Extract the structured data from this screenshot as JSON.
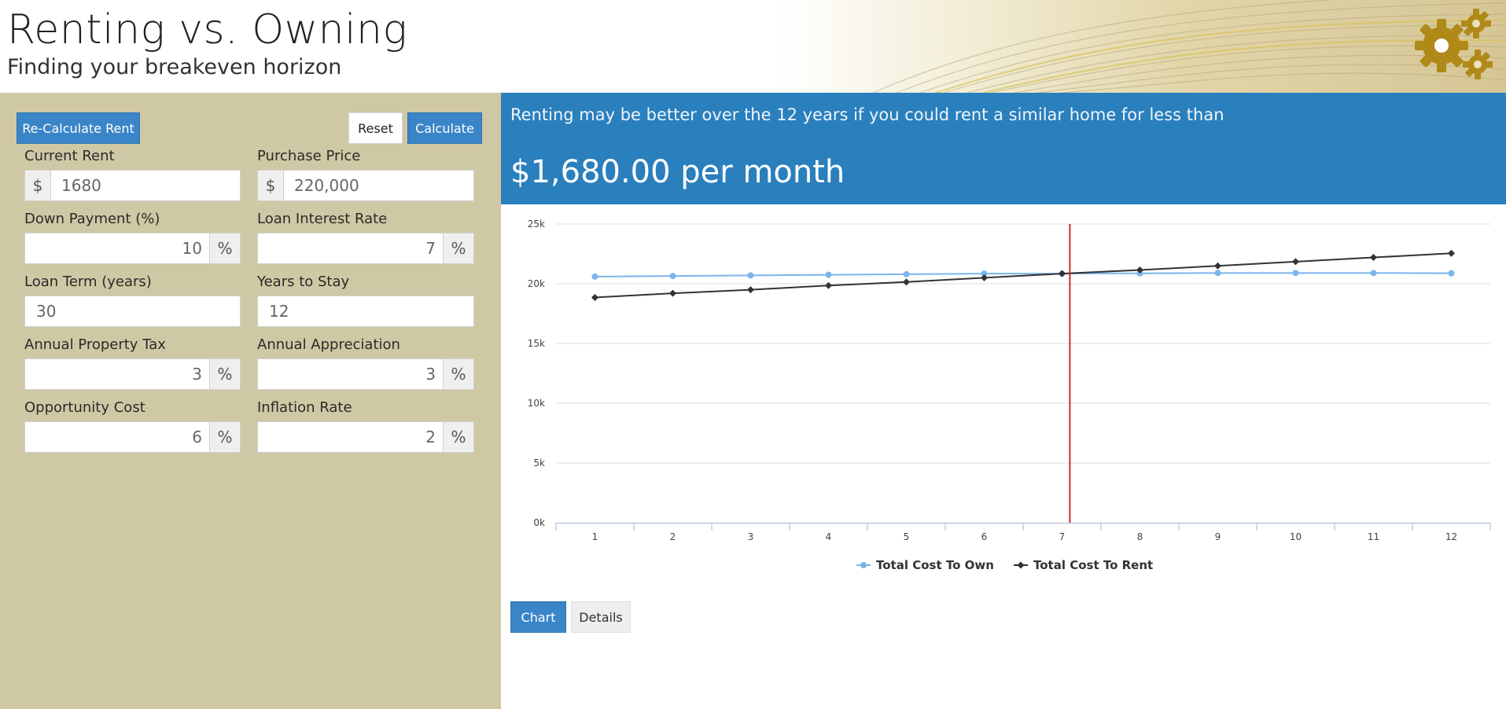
{
  "header": {
    "title": "Renting vs. Owning",
    "subtitle": "Finding your breakeven horizon",
    "logo_icon": "gears-icon"
  },
  "toolbar": {
    "recalc_label": "Re-Calculate Rent",
    "reset_label": "Reset",
    "calculate_label": "Calculate"
  },
  "form": {
    "current_rent": {
      "label": "Current Rent",
      "prefix": "$",
      "value": "1680"
    },
    "purchase_price": {
      "label": "Purchase Price",
      "prefix": "$",
      "value": "220,000"
    },
    "down_payment": {
      "label": "Down Payment (%)",
      "value": "10",
      "suffix": "%"
    },
    "loan_interest": {
      "label": "Loan Interest Rate",
      "value": "7",
      "suffix": "%"
    },
    "loan_term": {
      "label": "Loan Term (years)",
      "value": "30"
    },
    "years_to_stay": {
      "label": "Years to Stay",
      "value": "12"
    },
    "property_tax": {
      "label": "Annual Property Tax",
      "value": "3",
      "suffix": "%"
    },
    "appreciation": {
      "label": "Annual Appreciation",
      "value": "3",
      "suffix": "%"
    },
    "opportunity_cost": {
      "label": "Opportunity Cost",
      "value": "6",
      "suffix": "%"
    },
    "inflation_rate": {
      "label": "Inflation Rate",
      "value": "2",
      "suffix": "%"
    }
  },
  "result": {
    "message": "Renting may be better over the 12 years if you could rent a similar home for less than",
    "value": "$1,680.00 per month"
  },
  "tabs": [
    {
      "label": "Chart",
      "active": true
    },
    {
      "label": "Details",
      "active": false
    }
  ],
  "colors": {
    "accent": "#3a85c8",
    "banner": "#2a7fbd",
    "panel": "#cfc8a4",
    "own_series": "#7cb5ec",
    "rent_series": "#333333",
    "breakeven_line": "#d62728"
  },
  "chart_data": {
    "type": "line",
    "x": [
      1,
      2,
      3,
      4,
      5,
      6,
      7,
      8,
      9,
      10,
      11,
      12
    ],
    "y_ticks": [
      "0k",
      "5k",
      "10k",
      "15k",
      "20k",
      "25k"
    ],
    "ylim": [
      0,
      25000
    ],
    "series": [
      {
        "name": "Total Cost To Own",
        "color": "#7cb5ec",
        "marker": "circle",
        "values": [
          20600,
          20650,
          20700,
          20750,
          20800,
          20850,
          20850,
          20870,
          20900,
          20900,
          20900,
          20880
        ]
      },
      {
        "name": "Total Cost To Rent",
        "color": "#333333",
        "marker": "diamond",
        "values": [
          18850,
          19200,
          19500,
          19850,
          20150,
          20500,
          20850,
          21150,
          21500,
          21850,
          22200,
          22550
        ]
      }
    ],
    "breakeven_x": 7.1,
    "grid": true,
    "legend": "bottom-center"
  }
}
